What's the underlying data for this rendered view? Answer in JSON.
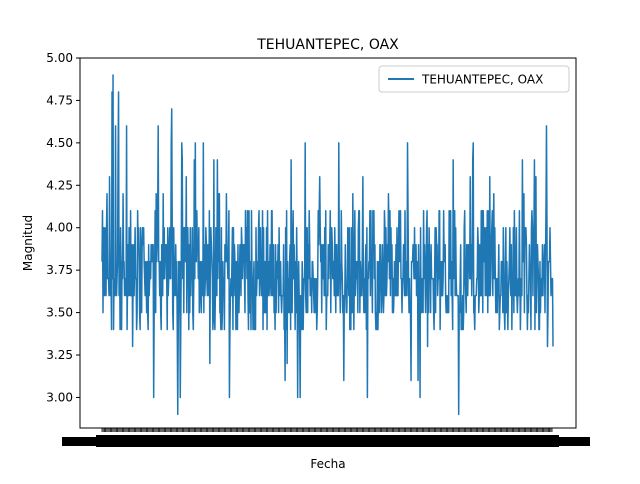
{
  "chart_data": {
    "type": "line",
    "title": "TEHUANTEPEC, OAX",
    "xlabel": "Fecha",
    "ylabel": "Magnitud",
    "ylim": [
      2.82,
      5.0
    ],
    "yticks": [
      3.0,
      3.25,
      3.5,
      3.75,
      4.0,
      4.25,
      4.5,
      4.75,
      5.0
    ],
    "ytick_labels": [
      "3.00",
      "3.25",
      "3.50",
      "3.75",
      "4.00",
      "4.25",
      "4.50",
      "4.75",
      "5.00"
    ],
    "x_tick_labels_note": "dense overlapping date labels (illegible)",
    "legend": {
      "position": "top-right",
      "entries": [
        "TEHUANTEPEC, OAX"
      ]
    },
    "series": [
      {
        "name": "TEHUANTEPEC, OAX",
        "color": "#1f77b4",
        "point_count": 900,
        "values_summary": {
          "typical_range": [
            3.4,
            4.1
          ],
          "mean_approx": 3.72,
          "peaks": [
            {
              "index_frac": 0.03,
              "value": 4.6
            },
            {
              "index_frac": 0.022,
              "value": 4.8
            },
            {
              "index_frac": 0.025,
              "value": 4.9
            },
            {
              "index_frac": 0.037,
              "value": 4.8
            },
            {
              "index_frac": 0.055,
              "value": 4.6
            },
            {
              "index_frac": 0.125,
              "value": 4.6
            },
            {
              "index_frac": 0.155,
              "value": 4.7
            },
            {
              "index_frac": 0.177,
              "value": 4.5
            },
            {
              "index_frac": 0.225,
              "value": 4.5
            },
            {
              "index_frac": 0.985,
              "value": 4.6
            }
          ],
          "troughs": [
            {
              "index_frac": 0.115,
              "value": 3.0
            },
            {
              "index_frac": 0.168,
              "value": 2.9
            },
            {
              "index_frac": 0.282,
              "value": 3.0
            },
            {
              "index_frac": 0.705,
              "value": 3.0
            },
            {
              "index_frac": 1.0,
              "value": 3.3
            }
          ]
        }
      }
    ]
  }
}
